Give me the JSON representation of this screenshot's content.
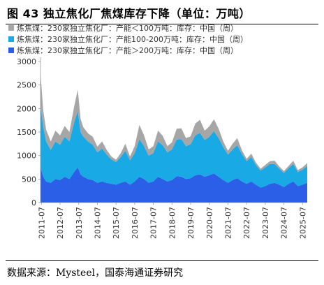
{
  "title": "图 43 独立焦化厂焦煤库存下降（单位：万吨）",
  "source": "数据来源：Mysteel，国泰海通证券研究",
  "chart_data": {
    "type": "area",
    "stacked": true,
    "title": "图 43 独立焦化厂焦煤库存下降（单位：万吨）",
    "xlabel": "",
    "ylabel": "",
    "ylim": [
      0,
      3000
    ],
    "yticks": [
      0,
      500,
      1000,
      1500,
      2000,
      2500,
      3000
    ],
    "xticks": [
      "2011-07",
      "2012-07",
      "2013-07",
      "2014-07",
      "2015-07",
      "2016-07",
      "2017-07",
      "2018-07",
      "2019-07",
      "2020-07",
      "2021-07",
      "2022-07",
      "2023-07",
      "2024-07",
      "2025-07"
    ],
    "x_start": 2011.45,
    "x_end": 2025.75,
    "grid": false,
    "legend_position": "top-left",
    "colors": [
      "#2b5fe8",
      "#19a9e5",
      "#a6a6a6"
    ],
    "x": [
      2011.45,
      2011.6,
      2011.75,
      2012.0,
      2012.25,
      2012.5,
      2012.75,
      2013.0,
      2013.25,
      2013.45,
      2013.6,
      2013.75,
      2014.0,
      2014.25,
      2014.5,
      2014.75,
      2015.0,
      2015.25,
      2015.5,
      2015.75,
      2016.0,
      2016.25,
      2016.5,
      2016.75,
      2017.0,
      2017.25,
      2017.5,
      2017.75,
      2018.0,
      2018.25,
      2018.5,
      2018.75,
      2019.0,
      2019.25,
      2019.5,
      2019.75,
      2020.0,
      2020.25,
      2020.5,
      2020.75,
      2021.0,
      2021.25,
      2021.5,
      2021.75,
      2022.0,
      2022.25,
      2022.5,
      2022.75,
      2023.0,
      2023.25,
      2023.5,
      2023.75,
      2024.0,
      2024.25,
      2024.5,
      2024.75,
      2025.0,
      2025.25,
      2025.5,
      2025.75
    ],
    "series": [
      {
        "name": "炼焦煤：230家独立焦化厂：产能＞200万吨：库存：中国（周）",
        "values": [
          750,
          550,
          450,
          420,
          500,
          480,
          550,
          500,
          650,
          750,
          600,
          550,
          500,
          480,
          420,
          450,
          420,
          400,
          380,
          420,
          450,
          380,
          450,
          550,
          500,
          420,
          450,
          550,
          500,
          450,
          480,
          560,
          550,
          500,
          520,
          580,
          600,
          550,
          580,
          620,
          550,
          480,
          420,
          480,
          520,
          450,
          400,
          450,
          380,
          320,
          350,
          400,
          420,
          380,
          330,
          400,
          450,
          350,
          380,
          420
        ]
      },
      {
        "name": "炼焦煤：230家独立焦化厂：产能100-200万吨：库存：中国（周）",
        "values": [
          1300,
          1050,
          850,
          700,
          800,
          750,
          850,
          800,
          1050,
          1200,
          900,
          850,
          800,
          750,
          650,
          700,
          600,
          520,
          480,
          550,
          650,
          520,
          600,
          800,
          700,
          580,
          600,
          750,
          720,
          620,
          650,
          780,
          800,
          700,
          720,
          850,
          880,
          780,
          820,
          900,
          820,
          700,
          600,
          650,
          700,
          580,
          480,
          520,
          420,
          360,
          400,
          420,
          400,
          340,
          300,
          330,
          370,
          300,
          320,
          360
        ]
      },
      {
        "name": "炼焦煤：230家独立焦化厂：产能＜100万吨：库存：中国（周）",
        "values": [
          700,
          350,
          250,
          180,
          230,
          200,
          230,
          200,
          330,
          450,
          280,
          200,
          170,
          170,
          120,
          150,
          100,
          60,
          50,
          80,
          150,
          80,
          150,
          300,
          230,
          130,
          150,
          230,
          200,
          130,
          150,
          230,
          230,
          170,
          170,
          250,
          280,
          200,
          220,
          250,
          200,
          120,
          80,
          120,
          150,
          80,
          50,
          70,
          50,
          40,
          50,
          60,
          70,
          50,
          40,
          50,
          70,
          40,
          50,
          60
        ]
      }
    ]
  }
}
